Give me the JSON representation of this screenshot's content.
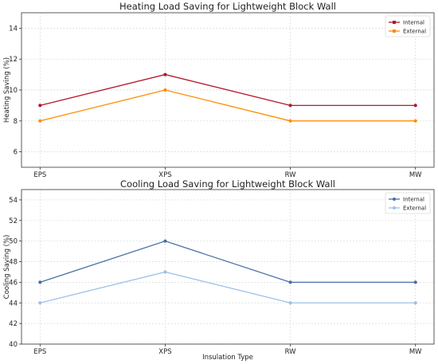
{
  "chart_data": [
    {
      "type": "line",
      "title": "Heating Load Saving for Lightweight Block Wall",
      "xlabel": "",
      "ylabel": "Heating Saving (%)",
      "categories": [
        "EPS",
        "XPS",
        "RW",
        "MW"
      ],
      "ylim": [
        5,
        15
      ],
      "yticks": [
        6,
        8,
        10,
        12,
        14
      ],
      "grid": true,
      "legend_position": "top-right",
      "series": [
        {
          "name": "Internal",
          "values": [
            9,
            11,
            9,
            9
          ],
          "color": "#b2182b"
        },
        {
          "name": "External",
          "values": [
            8,
            10,
            8,
            8
          ],
          "color": "#ff8c00"
        }
      ]
    },
    {
      "type": "line",
      "title": "Cooling Load Saving for Lightweight Block Wall",
      "xlabel": "Insulation Type",
      "ylabel": "Cooling Saving (%)",
      "categories": [
        "EPS",
        "XPS",
        "RW",
        "MW"
      ],
      "ylim": [
        40,
        55
      ],
      "yticks": [
        40,
        42,
        44,
        46,
        48,
        50,
        52,
        54
      ],
      "grid": true,
      "legend_position": "top-right",
      "series": [
        {
          "name": "Internal",
          "values": [
            46,
            50,
            46,
            46
          ],
          "color": "#4a6fa5"
        },
        {
          "name": "External",
          "values": [
            44,
            47,
            44,
            44
          ],
          "color": "#9ec1e8"
        }
      ]
    }
  ]
}
